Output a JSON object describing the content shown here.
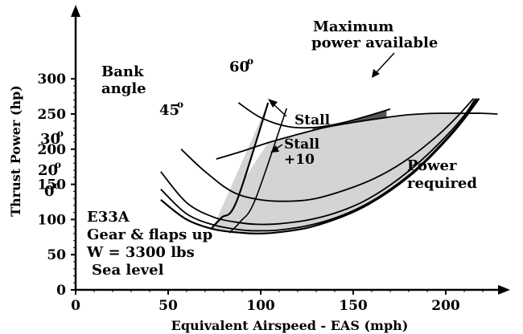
{
  "chart_data": {
    "type": "line",
    "xlabel": "Equivalent Airspeed - EAS (mph)",
    "ylabel": "Thrust Power (hp)",
    "xlim": [
      0,
      230
    ],
    "ylim": [
      0,
      310
    ],
    "x_ticks": [
      0,
      50,
      100,
      150,
      200
    ],
    "y_ticks": [
      0,
      50,
      100,
      150,
      200,
      250,
      300
    ],
    "grid": false,
    "annotations": {
      "max_power": [
        "Maximum",
        "power available"
      ],
      "bank_angle": [
        "Bank",
        "angle"
      ],
      "stall": "Stall",
      "stall_plus": [
        "Stall",
        "+10"
      ],
      "power_required": [
        "Power",
        "required"
      ],
      "aircraft": [
        "E33A",
        "Gear & flaps up",
        "W = 3300 lbs",
        "Sea level"
      ]
    },
    "series": [
      {
        "bank_label": "0",
        "deg_mark": "o",
        "stall_speed": 73,
        "x": [
          46,
          60,
          75,
          90,
          100,
          110,
          125,
          140,
          155,
          170,
          185,
          200,
          210,
          218
        ],
        "y": [
          128,
          100,
          86,
          81,
          80,
          82,
          88,
          100,
          117,
          141,
          172,
          212,
          243,
          272
        ]
      },
      {
        "bank_label": "20",
        "deg_mark": "o",
        "stall_speed": 75,
        "x": [
          46,
          60,
          75,
          90,
          100,
          110,
          125,
          140,
          155,
          170,
          185,
          200,
          210,
          217
        ],
        "y": [
          143,
          108,
          92,
          85,
          84,
          85,
          91,
          102,
          119,
          143,
          174,
          214,
          245,
          272
        ]
      },
      {
        "bank_label": "30",
        "deg_mark": "o",
        "stall_speed": 79,
        "x": [
          46,
          60,
          75,
          90,
          100,
          110,
          125,
          140,
          155,
          170,
          185,
          200,
          210,
          216
        ],
        "y": [
          168,
          124,
          103,
          95,
          93,
          94,
          99,
          109,
          125,
          149,
          180,
          218,
          248,
          272
        ]
      },
      {
        "bank_label": "45",
        "deg_mark": "o",
        "stall_speed": 87,
        "x": [
          57,
          70,
          85,
          100,
          115,
          130,
          150,
          165,
          180,
          195,
          205,
          215
        ],
        "y": [
          200,
          168,
          139,
          128,
          126,
          130,
          146,
          163,
          187,
          218,
          243,
          272
        ]
      },
      {
        "bank_label": "60",
        "deg_mark": "o",
        "stall_speed": 104,
        "x": [
          88,
          100,
          115,
          130,
          145,
          160,
          170
        ],
        "y": [
          266,
          245,
          232,
          231,
          238,
          249,
          257
        ]
      }
    ],
    "power_available": {
      "name": "Maximum power available",
      "x": [
        76,
        90,
        105,
        120,
        135,
        150,
        165,
        180,
        195,
        210,
        220,
        228
      ],
      "y": [
        186,
        197,
        210,
        221,
        231,
        238,
        244,
        249,
        251,
        251,
        251,
        250
      ]
    },
    "stall_line": {
      "name": "Stall",
      "x": [
        73,
        75,
        79,
        87,
        104
      ],
      "y": [
        86,
        92,
        103,
        126,
        266
      ]
    },
    "stall_plus10_line": {
      "name": "Stall +10",
      "x": [
        83,
        85,
        89,
        97,
        114
      ],
      "y": [
        81,
        86,
        97,
        128,
        258
      ]
    }
  }
}
